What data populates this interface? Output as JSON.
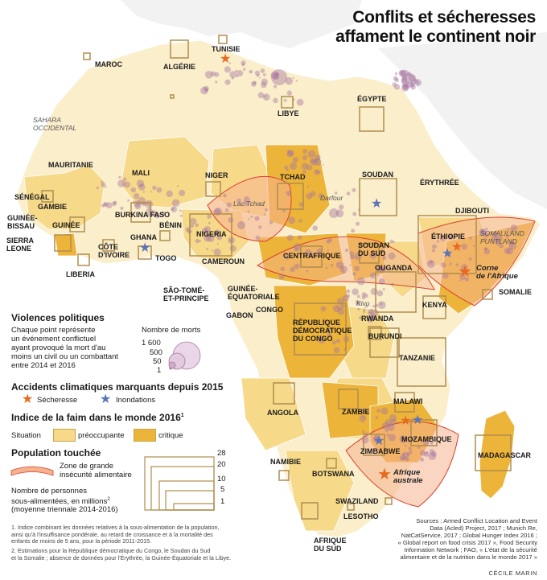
{
  "title": {
    "line1": "Conflits et sécheresses",
    "line2": "affament le continent noir"
  },
  "countries": [
    {
      "id": "maroc",
      "label": "MAROC"
    },
    {
      "id": "algerie",
      "label": "ALGÉRIE"
    },
    {
      "id": "tunisie",
      "label": "TUNISIE"
    },
    {
      "id": "libye",
      "label": "LIBYE"
    },
    {
      "id": "egypte",
      "label": "ÉGYPTE"
    },
    {
      "id": "mauritanie",
      "label": "MAURITANIE"
    },
    {
      "id": "mali",
      "label": "MALI"
    },
    {
      "id": "niger",
      "label": "NIGER"
    },
    {
      "id": "tchad",
      "label": "TCHAD"
    },
    {
      "id": "soudan",
      "label": "SOUDAN"
    },
    {
      "id": "erythree",
      "label": "ÉRYTHRÉE"
    },
    {
      "id": "djibouti",
      "label": "DJIBOUTI"
    },
    {
      "id": "senegal",
      "label": "SÉNÉGAL"
    },
    {
      "id": "gambie",
      "label": "GAMBIE"
    },
    {
      "id": "guinee_bissau",
      "label": "GUINÉE-\nBISSAU"
    },
    {
      "id": "guinee",
      "label": "GUINÉE"
    },
    {
      "id": "sierra_leone",
      "label": "SIERRA\nLEONE"
    },
    {
      "id": "liberia",
      "label": "LIBERIA"
    },
    {
      "id": "cote_ivoire",
      "label": "CÔTE\nD'IVOIRE"
    },
    {
      "id": "burkina",
      "label": "BURKINA FASO"
    },
    {
      "id": "ghana",
      "label": "GHANA"
    },
    {
      "id": "togo",
      "label": "TOGO"
    },
    {
      "id": "benin",
      "label": "BÉNIN"
    },
    {
      "id": "nigeria",
      "label": "NIGERIA"
    },
    {
      "id": "cameroun",
      "label": "CAMEROUN"
    },
    {
      "id": "centrafrique",
      "label": "CENTRAFRIQUE"
    },
    {
      "id": "soudan_sud",
      "label": "SOUDAN\nDU SUD"
    },
    {
      "id": "ethiopie",
      "label": "ÉTHIOPIE"
    },
    {
      "id": "somalie",
      "label": "SOMALIE"
    },
    {
      "id": "sao_tome",
      "label": "SÃO-TOMÉ-\nET-PRINCIPE"
    },
    {
      "id": "guinee_eq",
      "label": "GUINÉE-\nÉQUATORIALE"
    },
    {
      "id": "gabon",
      "label": "GABON"
    },
    {
      "id": "congo",
      "label": "CONGO"
    },
    {
      "id": "rdc",
      "label": "RÉPUBLIQUE\nDÉMOCRATIQUE\nDU CONGO"
    },
    {
      "id": "ouganda",
      "label": "OUGANDA"
    },
    {
      "id": "kenya",
      "label": "KENYA"
    },
    {
      "id": "rwanda",
      "label": "RWANDA"
    },
    {
      "id": "burundi",
      "label": "BURUNDI"
    },
    {
      "id": "tanzanie",
      "label": "TANZANIE"
    },
    {
      "id": "angola",
      "label": "ANGOLA"
    },
    {
      "id": "zambie",
      "label": "ZAMBIE"
    },
    {
      "id": "malawi",
      "label": "MALAWI"
    },
    {
      "id": "mozambique",
      "label": "MOZAMBIQUE"
    },
    {
      "id": "zimbabwe",
      "label": "ZIMBABWE"
    },
    {
      "id": "namibie",
      "label": "NAMIBIE"
    },
    {
      "id": "botswana",
      "label": "BOTSWANA"
    },
    {
      "id": "madagascar",
      "label": "MADAGASCAR"
    },
    {
      "id": "swaziland",
      "label": "SWAZILAND"
    },
    {
      "id": "lesotho",
      "label": "LESOTHO"
    },
    {
      "id": "afrique_sud",
      "label": "AFRIQUE\nDU SUD"
    }
  ],
  "regions": [
    {
      "id": "sahara",
      "label": "SAHARA\nOCCIDENTAL"
    },
    {
      "id": "lac_tchad",
      "label": "Lac Tchad"
    },
    {
      "id": "darfour",
      "label": "Darfour"
    },
    {
      "id": "kivu",
      "label": "Kivu"
    },
    {
      "id": "somaliland",
      "label": "SOMALILAND\nPUNTLAND"
    },
    {
      "id": "corne",
      "label": "Corne\nde l'Afrique"
    },
    {
      "id": "afrique_australe",
      "label": "Afrique\naustrale"
    }
  ],
  "legend": {
    "violence": {
      "heading": "Violences politiques",
      "text": "Chaque point représente\nun événement conflictuel\nayant provoqué la mort d'au\nmoins un civil ou un combattant\nentre 2014 et 2016",
      "deaths_title": "Nombre de morts",
      "deaths_values": [
        "1 600",
        "500",
        "50",
        "1"
      ]
    },
    "climate": {
      "heading": "Accidents climatiques marquants depuis 2015",
      "drought": "Sécheresse",
      "flood": "Inondations"
    },
    "hunger": {
      "heading": "Indice de la faim dans le monde 2016",
      "note_mark": "1",
      "situation": "Situation",
      "preoccupante": "préoccupante",
      "critique": "critique"
    },
    "population": {
      "heading": "Population touchée",
      "zone": "Zone de grande\ninsécurité alimentaire",
      "people_text": "Nombre de personnes\nsous-alimentées, en millions",
      "people_mark": "2",
      "people_sub": "(moyenne triennale 2014-2016)",
      "sizes": [
        "28",
        "20",
        "10",
        "5",
        "1"
      ]
    }
  },
  "footnotes": [
    "1. Indice combinant les données relatives à la sous-alimentation de la population,\nainsi qu'à l'insuffisance pondérale, au retard de croissance et à la mortalité des\nenfants de moins de 5 ans, pour la période 2011-2015.",
    "2. Estimations pour la République démocratique du Congo, le Soudan du Sud\net la Somalie ; absence de données pour l'Érythrée, la Guinée-Équatoriale et la Libye."
  ],
  "sources": "Sources : Armed Conflict Location and Event\nData (Acled) Project, 2017 ; Munich Re,\nNatCatService, 2017 ; Global Hunger Index 2016 ;\n« Global report on food crisis 2017 », Food Security\nInformation Network ; FAO, « L'état de la sécurité\nalimentaire et de la nutrition dans le monde 2017 »",
  "credit": "Cécile Marin",
  "colors": {
    "sea": "#ffffff",
    "land_base": "#fbeecb",
    "preoccupante": "#f7d98a",
    "critique": "#edb43a",
    "conflict_dot": "#a7779f",
    "drought_star": "#e66a1f",
    "flood_star": "#5b74b6",
    "zone_fill": "#f5b28e",
    "zone_line": "#d9412d",
    "square": "#b08d4e"
  }
}
